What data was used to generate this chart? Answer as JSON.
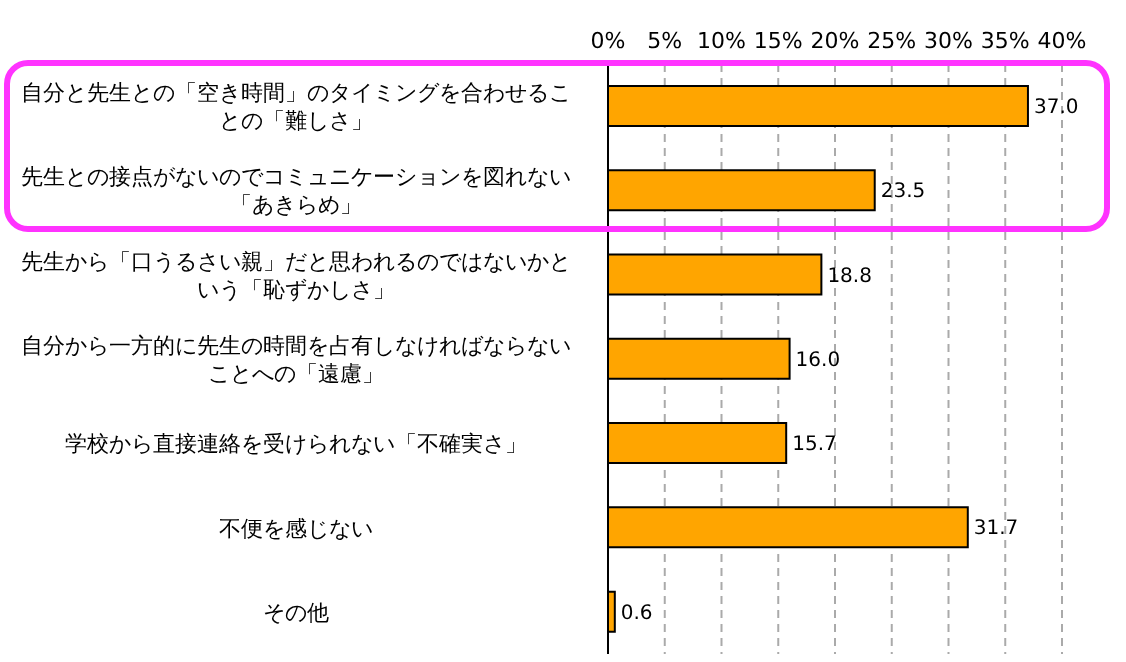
{
  "chart_data": {
    "type": "bar",
    "orientation": "horizontal",
    "categories": [
      "自分と先生との「空き時間」のタイミングを合わせることの「難しさ」",
      "先生との接点がないのでコミュニケーションを図れない「あきらめ」",
      "先生から「口うるさい親」だと思われるのではないかという「恥ずかしさ」",
      "自分から一方的に先生の時間を占有しなければならないことへの「遠慮」",
      "学校から直接連絡を受けられない「不確実さ」",
      "不便を感じない",
      "その他"
    ],
    "values": [
      37.0,
      23.5,
      18.8,
      16.0,
      15.7,
      31.7,
      0.6
    ],
    "value_labels": [
      "37.0",
      "23.5",
      "18.8",
      "16.0",
      "15.7",
      "31.7",
      "0.6"
    ],
    "color": "#ffa500",
    "xlim": [
      0,
      40
    ],
    "xticks": [
      {
        "value": 0,
        "label": "0%"
      },
      {
        "value": 5,
        "label": "5%"
      },
      {
        "value": 10,
        "label": "10%"
      },
      {
        "value": 15,
        "label": "15%"
      },
      {
        "value": 20,
        "label": "20%"
      },
      {
        "value": 25,
        "label": "25%"
      },
      {
        "value": 30,
        "label": "30%"
      },
      {
        "value": 35,
        "label": "35%"
      },
      {
        "value": 40,
        "label": "40%"
      }
    ],
    "grid": "x"
  }
}
